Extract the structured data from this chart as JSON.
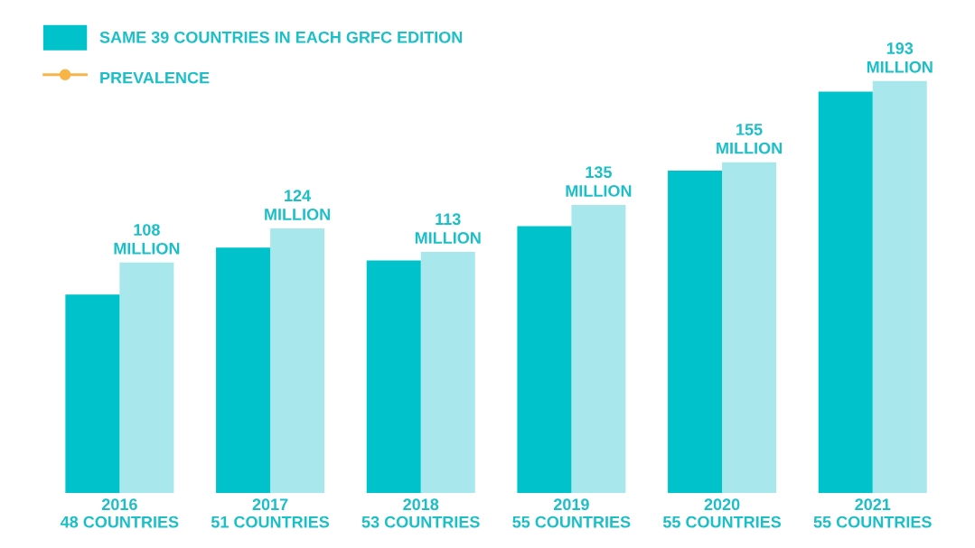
{
  "chart_data": {
    "type": "bar",
    "categories": [
      "2016\n48 COUNTRIES",
      "2017\n51 COUNTRIES",
      "2018\n53 COUNTRIES",
      "2019\n55 COUNTRIES",
      "2020\n55 COUNTRIES",
      "2021\n55 COUNTRIES"
    ],
    "series": [
      {
        "name": "SAME 39 COUNTRIES IN EACH GRFC EDITION",
        "color": "#00c2cb",
        "values": [
          93,
          115,
          109,
          125,
          151,
          188
        ]
      },
      {
        "color": "#a8e8ec",
        "values": [
          108,
          124,
          113,
          135,
          155,
          193
        ],
        "value_labels": [
          "108\nMILLION",
          "124\nMILLION",
          "113\nMILLION",
          "135\nMILLION",
          "155\nMILLION",
          "193\nMILLION"
        ]
      },
      {
        "name": "PREVALENCE",
        "type": "line",
        "color": "#f7b548",
        "marker": "circle",
        "values": [
          null,
          null,
          null,
          null,
          null,
          null
        ]
      }
    ],
    "legend": "top left",
    "grid": false
  }
}
